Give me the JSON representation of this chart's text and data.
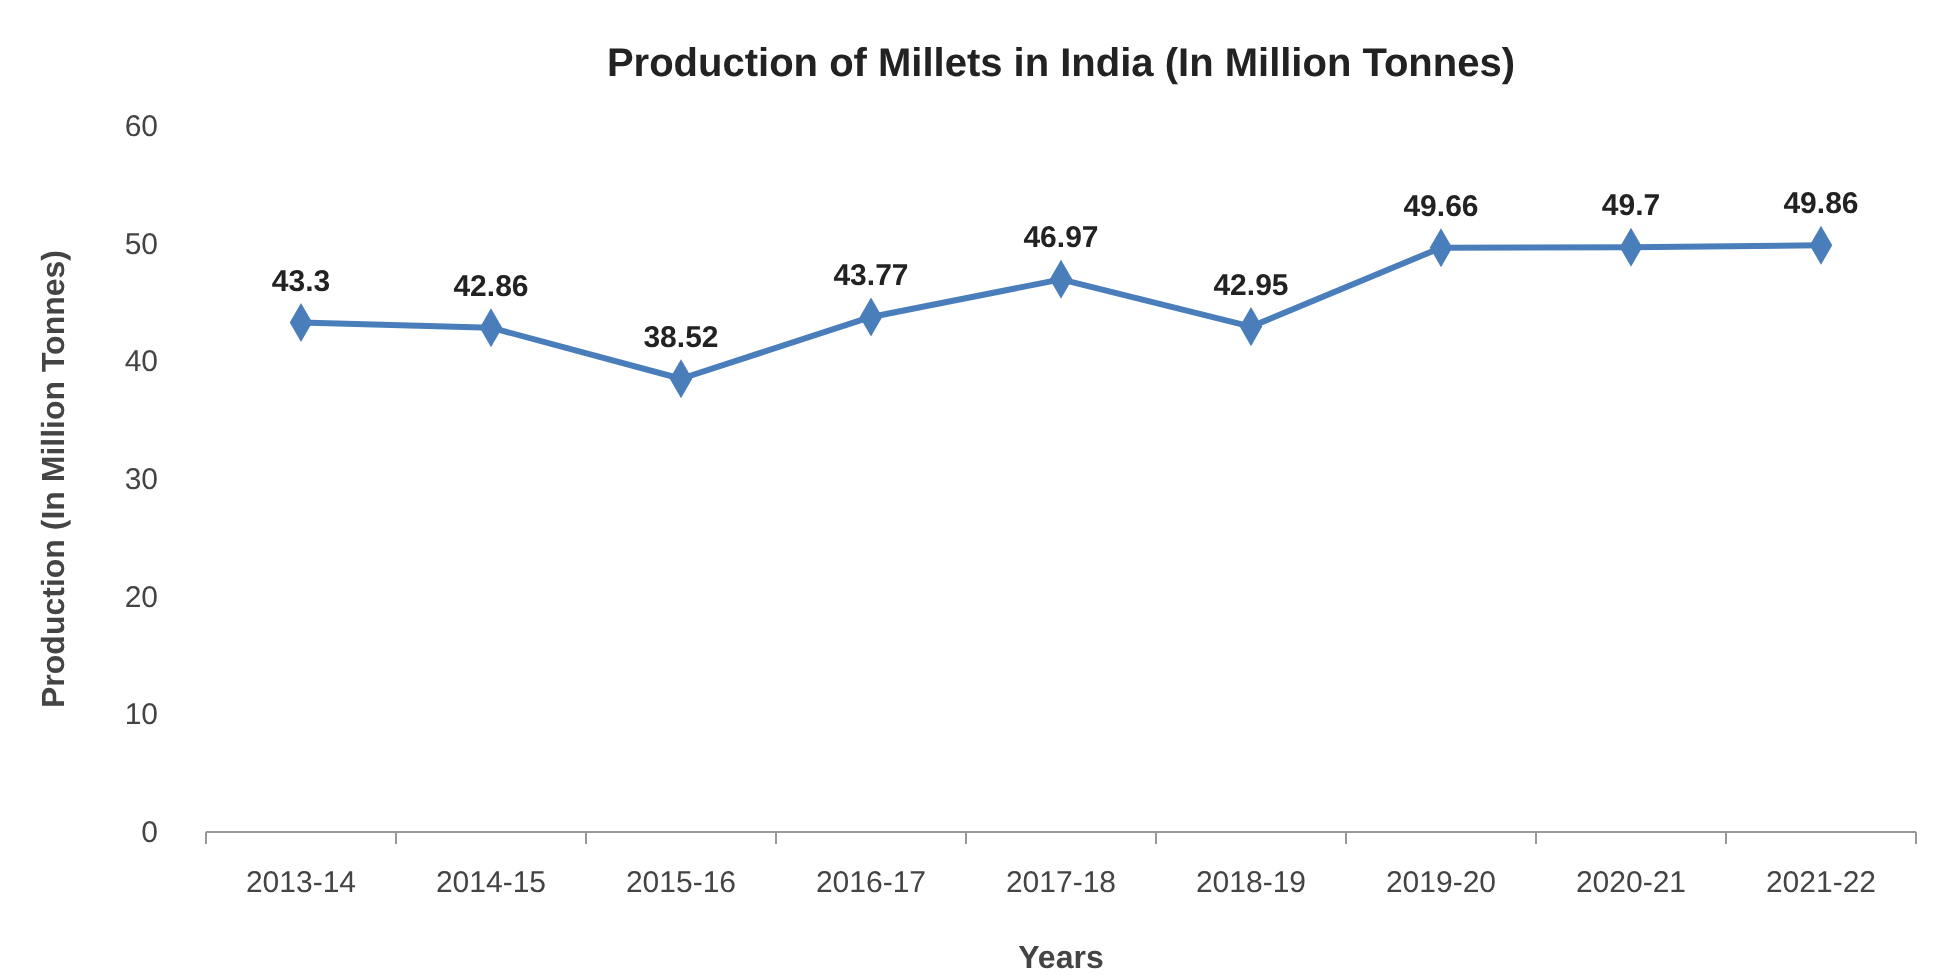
{
  "chart_data": {
    "type": "line",
    "title": "Production of Millets in India (In Million Tonnes)",
    "xlabel": "Years",
    "ylabel": "Production (In Million Tonnes)",
    "categories": [
      "2013-14",
      "2014-15",
      "2015-16",
      "2016-17",
      "2017-18",
      "2018-19",
      "2019-20",
      "2020-21",
      "2021-22"
    ],
    "series": [
      {
        "color": "#4a7ebb",
        "values": [
          43.3,
          42.86,
          38.52,
          43.77,
          46.97,
          42.95,
          49.66,
          49.7,
          49.86
        ]
      }
    ],
    "ylim": [
      0,
      60
    ],
    "yticks": [
      0,
      10,
      20,
      30,
      40,
      50,
      60
    ],
    "grid": false,
    "marker": "diamond",
    "line_style": "solid",
    "data_labels": true
  }
}
